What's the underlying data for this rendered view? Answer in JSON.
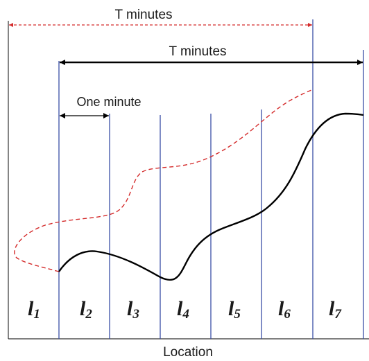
{
  "diagram": {
    "outer_span_label": "T minutes",
    "inner_span_label": "T minutes",
    "one_minute_label": "One minute",
    "axis_label": "Location",
    "segments": [
      {
        "letter": "l",
        "sub": "1"
      },
      {
        "letter": "l",
        "sub": "2"
      },
      {
        "letter": "l",
        "sub": "3"
      },
      {
        "letter": "l",
        "sub": "4"
      },
      {
        "letter": "l",
        "sub": "5"
      },
      {
        "letter": "l",
        "sub": "6"
      },
      {
        "letter": "l",
        "sub": "7"
      }
    ],
    "colors": {
      "blue_line": "#3a4fa6",
      "black_curve": "#000000",
      "red_dashed": "#d42a2a",
      "axis": "#333333"
    }
  }
}
